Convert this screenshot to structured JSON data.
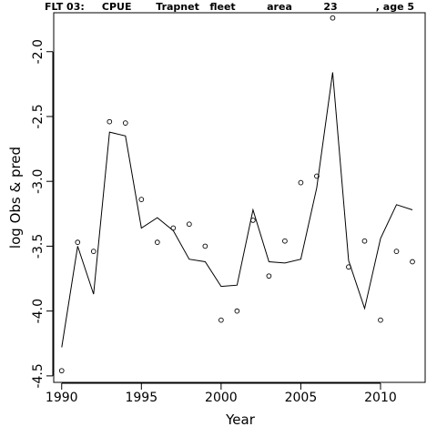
{
  "title": "FLT 03:     CPUE       Trapnet   fleet         area         23           , age 5",
  "chart_data": {
    "type": "line",
    "title": "FLT 03:     CPUE       Trapnet   fleet         area         23           , age 5",
    "xlabel": "Year",
    "ylabel": "log Obs & pred",
    "xlim": [
      1989.5,
      2012.8
    ],
    "ylim": [
      -4.55,
      -1.7
    ],
    "xticks": [
      1990,
      1995,
      2000,
      2005,
      2010
    ],
    "yticks": [
      -4.5,
      -4.0,
      -3.5,
      -3.0,
      -2.5,
      -2.0
    ],
    "ytick_labels": [
      "-4.5",
      "-4.0",
      "-3.5",
      "-3.0",
      "-2.5",
      "-2.0"
    ],
    "grid": false,
    "series": [
      {
        "style": "points",
        "marker": "open-circle",
        "x": [
          1990,
          1991,
          1992,
          1993,
          1994,
          1995,
          1996,
          1997,
          1998,
          1999,
          2000,
          2001,
          2002,
          2003,
          2004,
          2005,
          2006,
          2007,
          2008,
          2009,
          2010,
          2011,
          2012
        ],
        "values": [
          -4.46,
          -3.47,
          -3.54,
          -2.54,
          -2.55,
          -3.14,
          -3.47,
          -3.36,
          -3.33,
          -3.5,
          -4.07,
          -4.0,
          -3.3,
          -3.73,
          -3.46,
          -3.01,
          -2.96,
          -1.74,
          -3.66,
          -3.46,
          -4.07,
          -3.54,
          -3.62
        ]
      },
      {
        "style": "line",
        "x": [
          1990,
          1991,
          1992,
          1993,
          1994,
          1995,
          1996,
          1997,
          1998,
          1999,
          2000,
          2001,
          2002,
          2003,
          2004,
          2005,
          2006,
          2007,
          2008,
          2009,
          2010,
          2011,
          2012
        ],
        "values": [
          -4.28,
          -3.5,
          -3.87,
          -2.62,
          -2.65,
          -3.36,
          -3.28,
          -3.38,
          -3.6,
          -3.62,
          -3.81,
          -3.8,
          -3.22,
          -3.62,
          -3.63,
          -3.6,
          -3.05,
          -2.16,
          -3.61,
          -3.98,
          -3.44,
          -3.18,
          -3.22
        ]
      }
    ]
  }
}
